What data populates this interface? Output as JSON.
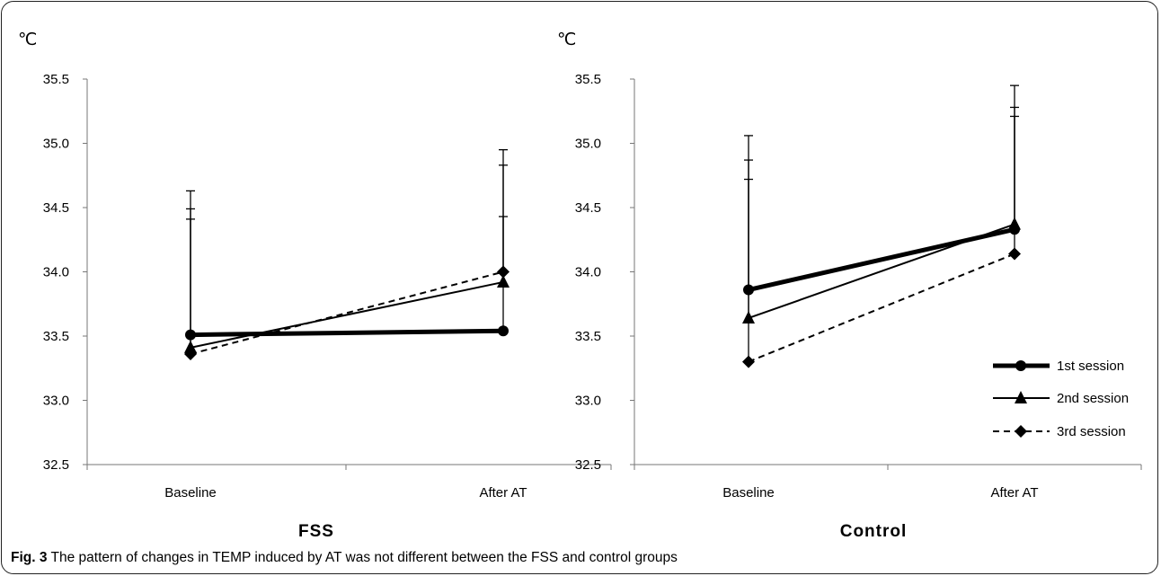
{
  "caption": {
    "label": "Fig. 3",
    "text": " The pattern of changes in TEMP induced by AT was not different between the FSS and control groups"
  },
  "legend": {
    "placement": "right",
    "items": [
      "1st session",
      "2nd session",
      "3rd session"
    ]
  },
  "chart_data": [
    {
      "type": "line",
      "title": "FSS",
      "unit_label": "℃",
      "categories": [
        "Baseline",
        "After AT"
      ],
      "ylim": [
        32.5,
        35.5
      ],
      "yticks": [
        "32.5",
        "33.0",
        "33.5",
        "34.0",
        "34.5",
        "35.0",
        "35.5"
      ],
      "grid": false,
      "series": [
        {
          "name": "1st session",
          "values": [
            33.51,
            33.54
          ],
          "error_upper": [
            34.63,
            34.43
          ],
          "marker": "circle",
          "line": "thick"
        },
        {
          "name": "2nd session",
          "values": [
            33.41,
            33.92
          ],
          "error_upper": [
            34.49,
            34.83
          ],
          "marker": "triangle",
          "line": "solid"
        },
        {
          "name": "3rd session",
          "values": [
            33.36,
            34.0
          ],
          "error_upper": [
            34.41,
            34.95
          ],
          "marker": "diamond",
          "line": "dashed"
        }
      ]
    },
    {
      "type": "line",
      "title": "Control",
      "unit_label": "℃",
      "categories": [
        "Baseline",
        "After AT"
      ],
      "ylim": [
        32.5,
        35.5
      ],
      "yticks": [
        "32.5",
        "33.0",
        "33.5",
        "34.0",
        "34.5",
        "35.0",
        "35.5"
      ],
      "grid": false,
      "series": [
        {
          "name": "1st session",
          "values": [
            33.86,
            34.33
          ],
          "error_upper": [
            35.06,
            35.21
          ],
          "marker": "circle",
          "line": "thick"
        },
        {
          "name": "2nd session",
          "values": [
            33.64,
            34.37
          ],
          "error_upper": [
            34.87,
            35.45
          ],
          "marker": "triangle",
          "line": "solid"
        },
        {
          "name": "3rd session",
          "values": [
            33.3,
            34.14
          ],
          "error_upper": [
            34.72,
            35.28
          ],
          "marker": "diamond",
          "line": "dashed"
        }
      ]
    }
  ]
}
